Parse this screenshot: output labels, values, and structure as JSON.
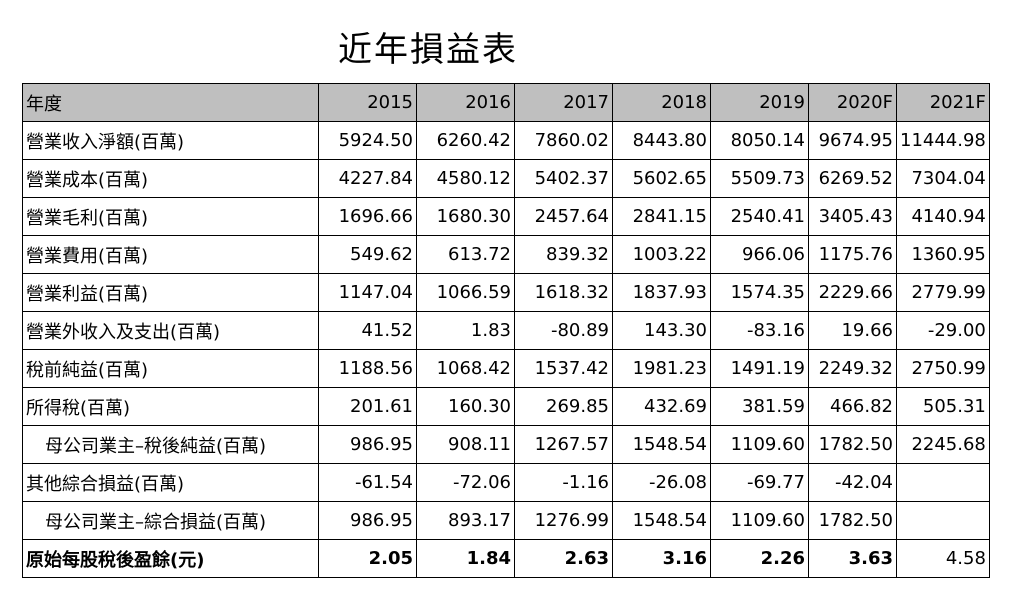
{
  "title": "近年損益表",
  "table": {
    "header_label": "年度",
    "years": [
      "2015",
      "2016",
      "2017",
      "2018",
      "2019",
      "2020F",
      "2021F"
    ],
    "rows": [
      {
        "label": "營業收入淨額(百萬)",
        "values": [
          "5924.50",
          "6260.42",
          "7860.02",
          "8443.80",
          "8050.14",
          "9674.95",
          "11444.98"
        ]
      },
      {
        "label": "營業成本(百萬)",
        "values": [
          "4227.84",
          "4580.12",
          "5402.37",
          "5602.65",
          "5509.73",
          "6269.52",
          "7304.04"
        ]
      },
      {
        "label": "營業毛利(百萬)",
        "values": [
          "1696.66",
          "1680.30",
          "2457.64",
          "2841.15",
          "2540.41",
          "3405.43",
          "4140.94"
        ]
      },
      {
        "label": "營業費用(百萬)",
        "values": [
          "549.62",
          "613.72",
          "839.32",
          "1003.22",
          "966.06",
          "1175.76",
          "1360.95"
        ]
      },
      {
        "label": "營業利益(百萬)",
        "values": [
          "1147.04",
          "1066.59",
          "1618.32",
          "1837.93",
          "1574.35",
          "2229.66",
          "2779.99"
        ]
      },
      {
        "label": "營業外收入及支出(百萬)",
        "values": [
          "41.52",
          "1.83",
          "-80.89",
          "143.30",
          "-83.16",
          "19.66",
          "-29.00"
        ]
      },
      {
        "label": "稅前純益(百萬)",
        "values": [
          "1188.56",
          "1068.42",
          "1537.42",
          "1981.23",
          "1491.19",
          "2249.32",
          "2750.99"
        ]
      },
      {
        "label": "所得稅(百萬)",
        "values": [
          "201.61",
          "160.30",
          "269.85",
          "432.69",
          "381.59",
          "466.82",
          "505.31"
        ]
      },
      {
        "label": "母公司業主–稅後純益(百萬)",
        "values": [
          "986.95",
          "908.11",
          "1267.57",
          "1548.54",
          "1109.60",
          "1782.50",
          "2245.68"
        ]
      },
      {
        "label": "其他綜合損益(百萬)",
        "values": [
          "-61.54",
          "-72.06",
          "-1.16",
          "-26.08",
          "-69.77",
          "-42.04",
          ""
        ]
      },
      {
        "label": "母公司業主–綜合損益(百萬)",
        "values": [
          "986.95",
          "893.17",
          "1276.99",
          "1548.54",
          "1109.60",
          "1782.50",
          ""
        ]
      },
      {
        "label": "原始每股稅後盈餘(元)",
        "values": [
          "2.05",
          "1.84",
          "2.63",
          "3.16",
          "2.26",
          "3.63",
          "4.58"
        ]
      }
    ]
  }
}
